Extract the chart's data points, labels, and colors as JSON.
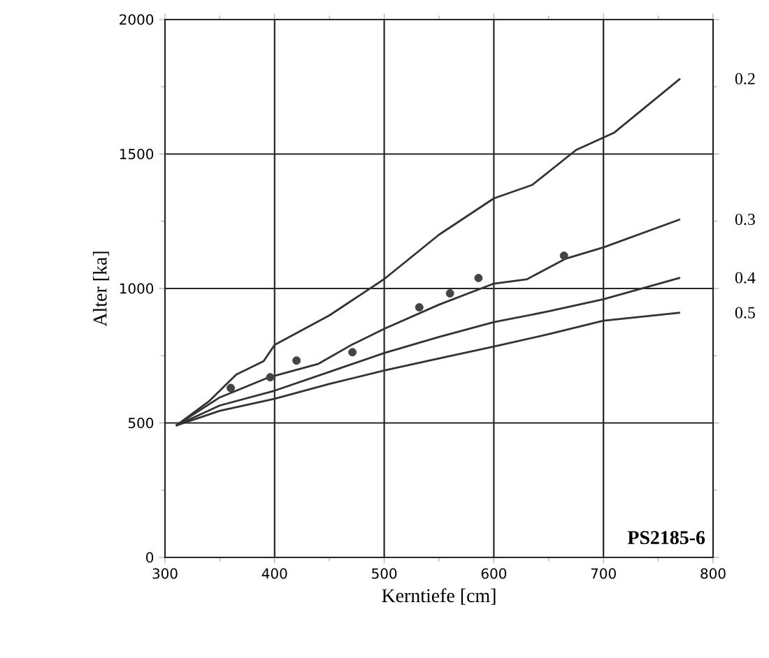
{
  "chart_data": {
    "type": "line",
    "xlabel": "Kerntiefe [cm]",
    "ylabel": "Alter [ka]",
    "xlim": [
      300,
      800
    ],
    "xticks": [
      300,
      400,
      500,
      600,
      700,
      800
    ],
    "ylim": [
      0,
      2000
    ],
    "yticks": [
      0,
      500,
      1000,
      1500,
      2000
    ],
    "grid": true,
    "annotations": [
      "PS2185-6"
    ],
    "series": [
      {
        "name": "0.2",
        "color": "#333333",
        "x": [
          310,
          340,
          365,
          390,
          400,
          450,
          500,
          550,
          600,
          635,
          675,
          710,
          770
        ],
        "values": [
          490,
          580,
          680,
          730,
          790,
          900,
          1035,
          1200,
          1335,
          1385,
          1515,
          1580,
          1780
        ]
      },
      {
        "name": "0.3",
        "color": "#333333",
        "x": [
          310,
          350,
          395,
          440,
          470,
          500,
          550,
          600,
          630,
          665,
          700,
          770
        ],
        "values": [
          490,
          595,
          670,
          720,
          790,
          850,
          940,
          1018,
          1034,
          1110,
          1153,
          1257
        ]
      },
      {
        "name": "0.4",
        "color": "#333333",
        "x": [
          310,
          350,
          400,
          450,
          500,
          550,
          600,
          650,
          700,
          770
        ],
        "values": [
          490,
          565,
          620,
          690,
          760,
          820,
          875,
          915,
          960,
          1040
        ]
      },
      {
        "name": "0.5",
        "color": "#333333",
        "x": [
          310,
          350,
          400,
          450,
          500,
          550,
          600,
          650,
          700,
          770
        ],
        "values": [
          490,
          545,
          590,
          645,
          695,
          740,
          784,
          830,
          880,
          910
        ]
      },
      {
        "type": "scatter",
        "color": "#444444",
        "x": [
          360,
          396,
          420,
          471,
          532,
          560,
          586,
          664
        ],
        "values": [
          630,
          670,
          732,
          763,
          930,
          982,
          1039,
          1122
        ]
      }
    ]
  }
}
